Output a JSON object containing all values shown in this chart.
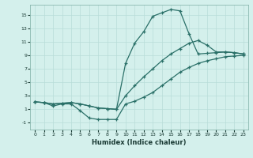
{
  "xlabel": "Humidex (Indice chaleur)",
  "background_color": "#d4f0ec",
  "line_color": "#2a7068",
  "grid_color": "#b8ddd8",
  "xlim": [
    -0.5,
    23.5
  ],
  "ylim": [
    -2.0,
    16.5
  ],
  "xticks": [
    0,
    1,
    2,
    3,
    4,
    5,
    6,
    7,
    8,
    9,
    10,
    11,
    12,
    13,
    14,
    15,
    16,
    17,
    18,
    19,
    20,
    21,
    22,
    23
  ],
  "yticks": [
    -1,
    1,
    3,
    5,
    7,
    9,
    11,
    13,
    15
  ],
  "line1_x": [
    0,
    1,
    2,
    3,
    4,
    5,
    6,
    7,
    8,
    9,
    10,
    11,
    12,
    13,
    14,
    15,
    16,
    17,
    18,
    19,
    20,
    21,
    22,
    23
  ],
  "line1_y": [
    2.1,
    2.0,
    1.8,
    1.9,
    2.0,
    1.8,
    1.5,
    1.2,
    1.1,
    1.0,
    7.8,
    10.8,
    12.5,
    14.8,
    15.3,
    15.8,
    15.6,
    12.2,
    9.2,
    9.3,
    9.4,
    9.5,
    9.4,
    9.2
  ],
  "line2_x": [
    0,
    1,
    2,
    3,
    4,
    5,
    6,
    7,
    8,
    9,
    10,
    11,
    12,
    13,
    14,
    15,
    16,
    17,
    18,
    19,
    20,
    21,
    22,
    23
  ],
  "line2_y": [
    2.1,
    2.0,
    1.8,
    1.9,
    2.0,
    1.8,
    1.5,
    1.2,
    1.1,
    1.0,
    3.0,
    4.5,
    5.8,
    7.0,
    8.2,
    9.2,
    10.0,
    10.8,
    11.2,
    10.5,
    9.5,
    9.5,
    9.4,
    9.2
  ],
  "line3_x": [
    0,
    1,
    2,
    3,
    4,
    5,
    6,
    7,
    8,
    9,
    10,
    11,
    12,
    13,
    14,
    15,
    16,
    17,
    18,
    19,
    20,
    21,
    22,
    23
  ],
  "line3_y": [
    2.1,
    2.0,
    1.5,
    1.8,
    1.8,
    0.8,
    -0.3,
    -0.5,
    -0.5,
    -0.5,
    1.8,
    2.2,
    2.8,
    3.5,
    4.5,
    5.5,
    6.5,
    7.2,
    7.8,
    8.2,
    8.5,
    8.8,
    8.9,
    9.0
  ]
}
